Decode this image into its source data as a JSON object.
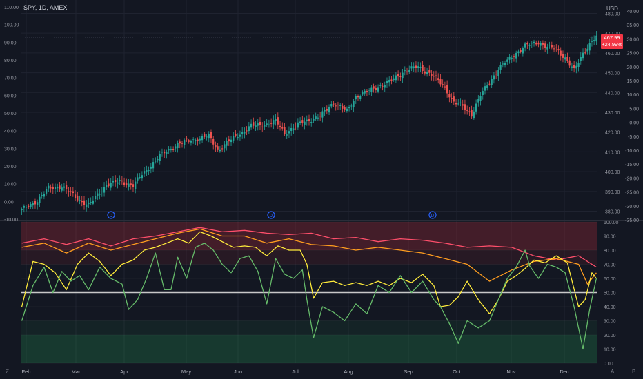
{
  "header": {
    "ticker": "SPY, 1D, AMEX",
    "currency": "USD"
  },
  "price_tag": {
    "price": "467.99",
    "change": "+24.99%"
  },
  "event_marker_letter": "D",
  "corner_icons": [
    "Z",
    "A",
    "B"
  ],
  "colors": {
    "background": "#131722",
    "grid": "#1f2330",
    "up": "#26a69a",
    "down": "#ef5350",
    "red_line": "#ff4f6b",
    "orange_line": "#ff9d1f",
    "yellow_line": "#ffec3b",
    "green_line": "#66bb6a",
    "midline": "#c8c8c8",
    "event_marker": "#2962ff"
  },
  "chart_data": [
    {
      "type": "candlestick",
      "title": "SPY, 1D, AMEX",
      "ylabel": "USD",
      "x_tick_labels": [
        "Feb",
        "Mar",
        "Apr",
        "May",
        "Jun",
        "Jul",
        "Aug",
        "Sep",
        "Oct",
        "Nov",
        "Dec"
      ],
      "right_axis": {
        "ylim": [
          376,
          484
        ],
        "ticks": [
          380,
          390,
          400,
          410,
          420,
          430,
          440,
          450,
          460,
          470,
          480
        ]
      },
      "left_axis": {
        "ylim": [
          -10,
          110
        ],
        "ticks": [
          "-10.00",
          "0.00",
          "10.00",
          "20.00",
          "30.00",
          "40.00",
          "50.00",
          "60.00",
          "70.00",
          "80.00",
          "90.00",
          "100.00",
          "110.00"
        ]
      },
      "pct_axis": {
        "ticks": [
          "40.00",
          "35.00",
          "30.00",
          "25.00",
          "20.00",
          "15.00",
          "10.00",
          "5.00",
          "0.00",
          "-5.00",
          "-10.00",
          "-15.00",
          "-20.00",
          "-25.00",
          "-30.00",
          "-35.00"
        ]
      },
      "close_anchor_points": [
        [
          0,
          380.5
        ],
        [
          7,
          385.5
        ],
        [
          12,
          391.5
        ],
        [
          18,
          392.5
        ],
        [
          22,
          389
        ],
        [
          26,
          385.5
        ],
        [
          30,
          383
        ],
        [
          38,
          393.5
        ],
        [
          44,
          395
        ],
        [
          50,
          393
        ],
        [
          54,
          398.5
        ],
        [
          62,
          408
        ],
        [
          70,
          414
        ],
        [
          78,
          416.5
        ],
        [
          84,
          418
        ],
        [
          88,
          411
        ],
        [
          95,
          417
        ],
        [
          103,
          423
        ],
        [
          110,
          424
        ],
        [
          114,
          425.5
        ],
        [
          118,
          419.5
        ],
        [
          126,
          425
        ],
        [
          134,
          428
        ],
        [
          140,
          435
        ],
        [
          146,
          430.5
        ],
        [
          150,
          438
        ],
        [
          158,
          442
        ],
        [
          166,
          446
        ],
        [
          172,
          451
        ],
        [
          178,
          453
        ],
        [
          184,
          449
        ],
        [
          190,
          442.5
        ],
        [
          194,
          435
        ],
        [
          198,
          433
        ],
        [
          202,
          429
        ],
        [
          206,
          438.5
        ],
        [
          214,
          452
        ],
        [
          222,
          460
        ],
        [
          226,
          463.5
        ],
        [
          232,
          465.5
        ],
        [
          236,
          463
        ],
        [
          240,
          462
        ],
        [
          244,
          457.5
        ],
        [
          248,
          451
        ],
        [
          252,
          460
        ],
        [
          256,
          466
        ],
        [
          258,
          467.99
        ]
      ],
      "price_high": 472.5,
      "price_low": 378.5,
      "last_price": 467.99,
      "event_markers": [
        "D",
        "D",
        "D"
      ]
    },
    {
      "type": "line",
      "ylim": [
        0,
        100
      ],
      "y_ticks": [
        "0.00",
        "10.00",
        "20.00",
        "30.00",
        "40.00",
        "50.00",
        "60.00",
        "70.00",
        "80.00",
        "90.00",
        "100.00"
      ],
      "zones": [
        {
          "from": 80,
          "to": 100,
          "color": "red"
        },
        {
          "from": 70,
          "to": 80,
          "color": "red-faint"
        },
        {
          "from": 20,
          "to": 30,
          "color": "green-faint"
        },
        {
          "from": 0,
          "to": 20,
          "color": "green"
        }
      ],
      "midline": 50,
      "series": [
        {
          "color": "#ff4f6b",
          "points": [
            [
              0,
              85
            ],
            [
              10,
              88
            ],
            [
              20,
              84
            ],
            [
              30,
              88
            ],
            [
              40,
              83
            ],
            [
              50,
              88
            ],
            [
              60,
              90
            ],
            [
              70,
              93
            ],
            [
              80,
              96
            ],
            [
              90,
              93
            ],
            [
              100,
              94
            ],
            [
              110,
              92
            ],
            [
              120,
              91
            ],
            [
              130,
              92
            ],
            [
              140,
              88
            ],
            [
              150,
              89
            ],
            [
              160,
              86
            ],
            [
              170,
              88
            ],
            [
              180,
              87
            ],
            [
              190,
              85
            ],
            [
              200,
              82
            ],
            [
              210,
              83
            ],
            [
              220,
              82
            ],
            [
              230,
              76
            ],
            [
              240,
              73
            ],
            [
              250,
              76
            ],
            [
              258,
              68
            ]
          ]
        },
        {
          "color": "#ff9d1f",
          "points": [
            [
              0,
              82
            ],
            [
              10,
              85
            ],
            [
              20,
              78
            ],
            [
              30,
              85
            ],
            [
              40,
              80
            ],
            [
              50,
              84
            ],
            [
              60,
              88
            ],
            [
              70,
              92
            ],
            [
              80,
              95
            ],
            [
              90,
              90
            ],
            [
              100,
              90
            ],
            [
              110,
              85
            ],
            [
              120,
              88
            ],
            [
              130,
              84
            ],
            [
              140,
              83
            ],
            [
              150,
              80
            ],
            [
              160,
              82
            ],
            [
              170,
              80
            ],
            [
              180,
              78
            ],
            [
              190,
              74
            ],
            [
              200,
              70
            ],
            [
              210,
              58
            ],
            [
              220,
              66
            ],
            [
              230,
              72
            ],
            [
              240,
              74
            ],
            [
              250,
              70
            ],
            [
              254,
              56
            ],
            [
              258,
              64
            ]
          ]
        },
        {
          "color": "#ffec3b",
          "points": [
            [
              0,
              40
            ],
            [
              5,
              72
            ],
            [
              10,
              70
            ],
            [
              15,
              64
            ],
            [
              20,
              52
            ],
            [
              25,
              70
            ],
            [
              30,
              78
            ],
            [
              35,
              72
            ],
            [
              40,
              62
            ],
            [
              45,
              70
            ],
            [
              50,
              73
            ],
            [
              55,
              80
            ],
            [
              60,
              82
            ],
            [
              65,
              85
            ],
            [
              70,
              88
            ],
            [
              75,
              85
            ],
            [
              80,
              93
            ],
            [
              85,
              90
            ],
            [
              90,
              86
            ],
            [
              95,
              82
            ],
            [
              100,
              83
            ],
            [
              105,
              82
            ],
            [
              110,
              76
            ],
            [
              115,
              83
            ],
            [
              120,
              80
            ],
            [
              125,
              80
            ],
            [
              128,
              70
            ],
            [
              131,
              46
            ],
            [
              135,
              57
            ],
            [
              140,
              58
            ],
            [
              145,
              55
            ],
            [
              150,
              57
            ],
            [
              155,
              55
            ],
            [
              160,
              58
            ],
            [
              165,
              55
            ],
            [
              170,
              60
            ],
            [
              175,
              57
            ],
            [
              180,
              63
            ],
            [
              185,
              55
            ],
            [
              188,
              40
            ],
            [
              192,
              41
            ],
            [
              196,
              47
            ],
            [
              200,
              58
            ],
            [
              205,
              45
            ],
            [
              210,
              35
            ],
            [
              214,
              45
            ],
            [
              218,
              58
            ],
            [
              222,
              62
            ],
            [
              226,
              67
            ],
            [
              230,
              73
            ],
            [
              235,
              71
            ],
            [
              240,
              76
            ],
            [
              245,
              71
            ],
            [
              250,
              40
            ],
            [
              253,
              45
            ],
            [
              256,
              64
            ],
            [
              258,
              60
            ]
          ]
        },
        {
          "color": "#66bb6a",
          "points": [
            [
              0,
              30
            ],
            [
              5,
              55
            ],
            [
              10,
              68
            ],
            [
              14,
              50
            ],
            [
              18,
              65
            ],
            [
              22,
              58
            ],
            [
              26,
              62
            ],
            [
              30,
              52
            ],
            [
              35,
              68
            ],
            [
              40,
              60
            ],
            [
              45,
              56
            ],
            [
              48,
              38
            ],
            [
              52,
              45
            ],
            [
              56,
              60
            ],
            [
              60,
              78
            ],
            [
              64,
              52
            ],
            [
              67,
              52
            ],
            [
              70,
              75
            ],
            [
              74,
              60
            ],
            [
              78,
              82
            ],
            [
              82,
              85
            ],
            [
              86,
              80
            ],
            [
              90,
              70
            ],
            [
              94,
              64
            ],
            [
              98,
              74
            ],
            [
              102,
              76
            ],
            [
              106,
              65
            ],
            [
              110,
              42
            ],
            [
              114,
              74
            ],
            [
              118,
              63
            ],
            [
              122,
              60
            ],
            [
              126,
              66
            ],
            [
              128,
              45
            ],
            [
              131,
              18
            ],
            [
              135,
              40
            ],
            [
              140,
              36
            ],
            [
              145,
              30
            ],
            [
              150,
              42
            ],
            [
              155,
              35
            ],
            [
              160,
              55
            ],
            [
              165,
              50
            ],
            [
              170,
              62
            ],
            [
              175,
              50
            ],
            [
              180,
              58
            ],
            [
              185,
              45
            ],
            [
              188,
              40
            ],
            [
              192,
              28
            ],
            [
              196,
              14
            ],
            [
              200,
              30
            ],
            [
              205,
              25
            ],
            [
              210,
              30
            ],
            [
              214,
              45
            ],
            [
              218,
              60
            ],
            [
              222,
              68
            ],
            [
              226,
              80
            ],
            [
              228,
              69
            ],
            [
              232,
              60
            ],
            [
              236,
              70
            ],
            [
              240,
              68
            ],
            [
              244,
              64
            ],
            [
              248,
              40
            ],
            [
              252,
              10
            ],
            [
              255,
              38
            ],
            [
              258,
              60
            ]
          ]
        }
      ]
    }
  ]
}
